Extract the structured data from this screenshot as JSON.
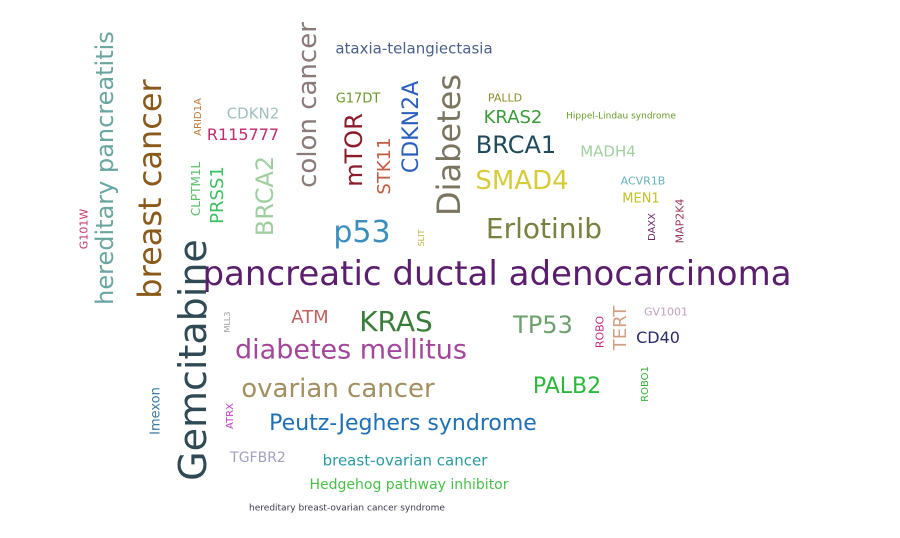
{
  "words": [
    {
      "text": "pancreatic ductal adenocarcinoma",
      "color": "#5b1e6e"
    },
    {
      "text": "Gemcitabine",
      "color": "#2f4a55"
    },
    {
      "text": "breast cancer",
      "color": "#8a5a1a"
    },
    {
      "text": "hereditary pancreatitis",
      "color": "#6aa6a0"
    },
    {
      "text": "colon cancer",
      "color": "#8a7a7a"
    },
    {
      "text": "Diabetes",
      "color": "#7a7560"
    },
    {
      "text": "diabetes mellitus",
      "color": "#a3479a"
    },
    {
      "text": "KRAS",
      "color": "#3a7d3a"
    },
    {
      "text": "ovarian cancer",
      "color": "#a39060"
    },
    {
      "text": "Peutz-Jeghers syndrome",
      "color": "#1f6fb5"
    },
    {
      "text": "SMAD4",
      "color": "#d6cc3a"
    },
    {
      "text": "Erlotinib",
      "color": "#7a8040"
    },
    {
      "text": "p53",
      "color": "#3a8fc0"
    },
    {
      "text": "BRCA1",
      "color": "#1f4a5a"
    },
    {
      "text": "TP53",
      "color": "#6ea06e"
    },
    {
      "text": "CDKN2A",
      "color": "#2a5fbf"
    },
    {
      "text": "mTOR",
      "color": "#8b1a2a"
    },
    {
      "text": "BRCA2",
      "color": "#9fcfa0"
    },
    {
      "text": "PALB2",
      "color": "#2ab83a"
    },
    {
      "text": "ataxia-telangiectasia",
      "color": "#4a5f8a"
    },
    {
      "text": "breast-ovarian cancer",
      "color": "#2a9aa0"
    },
    {
      "text": "Hedgehog pathway inhibitor",
      "color": "#4ac04a"
    },
    {
      "text": "ATM",
      "color": "#c06060"
    },
    {
      "text": "STK11",
      "color": "#c05a40"
    },
    {
      "text": "KRAS2",
      "color": "#3a9a3a"
    },
    {
      "text": "PRSS1",
      "color": "#3ac060"
    },
    {
      "text": "TERT",
      "color": "#d0a080"
    },
    {
      "text": "CD40",
      "color": "#2a2a6a"
    },
    {
      "text": "R115777",
      "color": "#c02a6a"
    },
    {
      "text": "CDKN2",
      "color": "#a0c0c0"
    },
    {
      "text": "MADH4",
      "color": "#a0d0a0"
    },
    {
      "text": "TGFBR2",
      "color": "#a0a0c0"
    },
    {
      "text": "Imexon",
      "color": "#3a7aa0"
    },
    {
      "text": "G17DT",
      "color": "#6a9a2a"
    },
    {
      "text": "MEN1",
      "color": "#c0c02a"
    },
    {
      "text": "CLPTM1L",
      "color": "#5ac06a"
    },
    {
      "text": "ROBO",
      "color": "#c02a7a"
    },
    {
      "text": "ROBO1",
      "color": "#3ab03a"
    },
    {
      "text": "PALLD",
      "color": "#8a8a2a"
    },
    {
      "text": "ACVR1B",
      "color": "#6ab0c0"
    },
    {
      "text": "GV1001",
      "color": "#c0a0c0"
    },
    {
      "text": "MAP2K4",
      "color": "#9a3a5a"
    },
    {
      "text": "DAXX",
      "color": "#6a2a6a"
    },
    {
      "text": "ATRX",
      "color": "#c03ac0"
    },
    {
      "text": "ARID1A",
      "color": "#c07a3a"
    },
    {
      "text": "G101W",
      "color": "#c03a6a"
    },
    {
      "text": "Hippel-Lindau syndrome",
      "color": "#6a9a2a"
    },
    {
      "text": "MLL3",
      "color": "#a0a0a0"
    },
    {
      "text": "SLIT",
      "color": "#c0b03a"
    },
    {
      "text": "hereditary breast-ovarian cancer syndrome",
      "color": "#3a3a4a"
    }
  ]
}
